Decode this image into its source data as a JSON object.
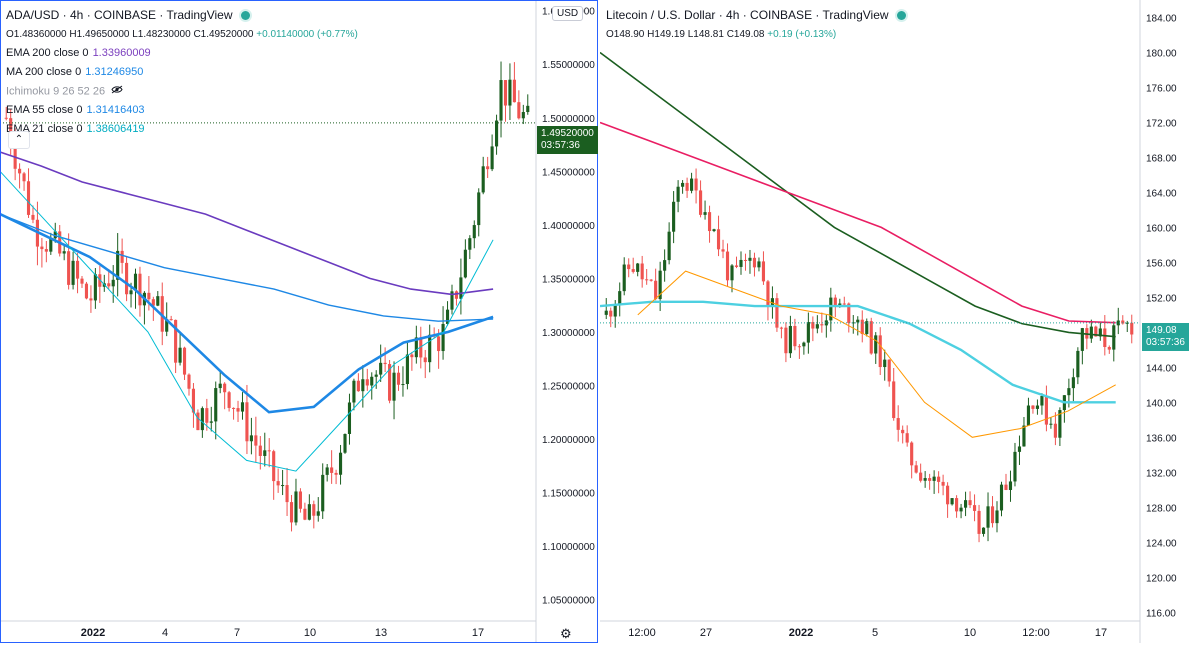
{
  "left_chart": {
    "title": "ADA/USD · 4h · COINBASE · TradingView",
    "ohlc": {
      "o": "O1.48360000",
      "h": "H1.49650000",
      "l": "L1.48230000",
      "c": "C1.49520000",
      "chg": "+0.01140000 (+0.77%)"
    },
    "indicators": [
      {
        "label": "EMA 200 close 0",
        "value": "1.33960009",
        "color": "#7b3fbe"
      },
      {
        "label": "MA 200 close 0",
        "value": "1.31246950",
        "color": "#1e88e5"
      },
      {
        "label": "Ichimoku 9 26 52 26",
        "value": "",
        "color": "#9598a1"
      },
      {
        "label": "EMA 55 close 0",
        "value": "1.31416403",
        "color": "#1e88e5"
      },
      {
        "label": "EMA 21 close 0",
        "value": "1.38606419",
        "color": "#00bcd4"
      }
    ],
    "currency_btn": "USD",
    "price_tag": "1.49520000",
    "countdown": "03:57:36",
    "yaxis_labels": [
      "1.60000000",
      "1.55000000",
      "1.50000000",
      "1.45000000",
      "1.40000000",
      "1.35000000",
      "1.30000000",
      "1.25000000",
      "1.20000000",
      "1.15000000",
      "1.10000000",
      "1.05000000"
    ],
    "xaxis_labels": [
      "2022",
      "4",
      "7",
      "10",
      "13",
      "17"
    ],
    "colors": {
      "up": "#26a69a",
      "down": "#ef5350",
      "body_up": "#1b5e20"
    }
  },
  "right_chart": {
    "title": "Litecoin / U.S. Dollar · 4h · COINBASE · TradingView",
    "ohlc": {
      "o": "O148.90",
      "h": "H149.19",
      "l": "L148.81",
      "c": "C149.08",
      "chg": "+0.19 (+0.13%)"
    },
    "price_tag": "149.08",
    "countdown": "03:57:36",
    "yaxis_labels": [
      "184.00",
      "180.00",
      "176.00",
      "172.00",
      "168.00",
      "164.00",
      "160.00",
      "156.00",
      "152.00",
      "148.00",
      "144.00",
      "140.00",
      "136.00",
      "132.00",
      "128.00",
      "124.00",
      "120.00",
      "116.00"
    ],
    "xaxis_labels": [
      "12:00",
      "27",
      "2022",
      "5",
      "10",
      "12:00",
      "17"
    ]
  },
  "chart_data": [
    {
      "type": "line",
      "title": "ADA/USD · 4h · COINBASE",
      "ylim": [
        1.03,
        1.61
      ],
      "series": [
        {
          "name": "EMA 200 close 0",
          "values": [
            1.468,
            1.455,
            1.44,
            1.43,
            1.42,
            1.41,
            1.395,
            1.38,
            1.365,
            1.35,
            1.34,
            1.335,
            1.34
          ]
        },
        {
          "name": "MA 200 close 0",
          "values": [
            1.41,
            1.39,
            1.375,
            1.36,
            1.35,
            1.34,
            1.325,
            1.315,
            1.31,
            1.312
          ]
        },
        {
          "name": "EMA 55 close 0",
          "values": [
            1.41,
            1.39,
            1.37,
            1.34,
            1.3,
            1.26,
            1.225,
            1.23,
            1.265,
            1.29,
            1.3,
            1.314
          ]
        },
        {
          "name": "EMA 21 close 0",
          "values": [
            1.45,
            1.4,
            1.35,
            1.3,
            1.22,
            1.18,
            1.17,
            1.22,
            1.27,
            1.3,
            1.386
          ]
        }
      ],
      "last_close": 1.4952
    },
    {
      "type": "line",
      "title": "Litecoin / U.S. Dollar · 4h · COINBASE",
      "ylim": [
        115,
        186
      ],
      "series": [
        {
          "name": "dark green MA",
          "values": [
            180,
            176,
            172,
            168,
            164,
            160,
            157,
            154,
            151,
            149,
            148,
            147.5
          ]
        },
        {
          "name": "red MA",
          "values": [
            172,
            170,
            168,
            166,
            164,
            162,
            160,
            157,
            154,
            151,
            149.3,
            149.1
          ]
        },
        {
          "name": "cyan MA",
          "values": [
            151,
            151.5,
            151.5,
            151,
            151,
            151,
            149,
            146,
            142,
            140,
            140
          ]
        },
        {
          "name": "orange EMA",
          "values": [
            150,
            155,
            153,
            151,
            150,
            147,
            140,
            136,
            137,
            139,
            142
          ]
        }
      ],
      "last_close": 149.08
    }
  ]
}
